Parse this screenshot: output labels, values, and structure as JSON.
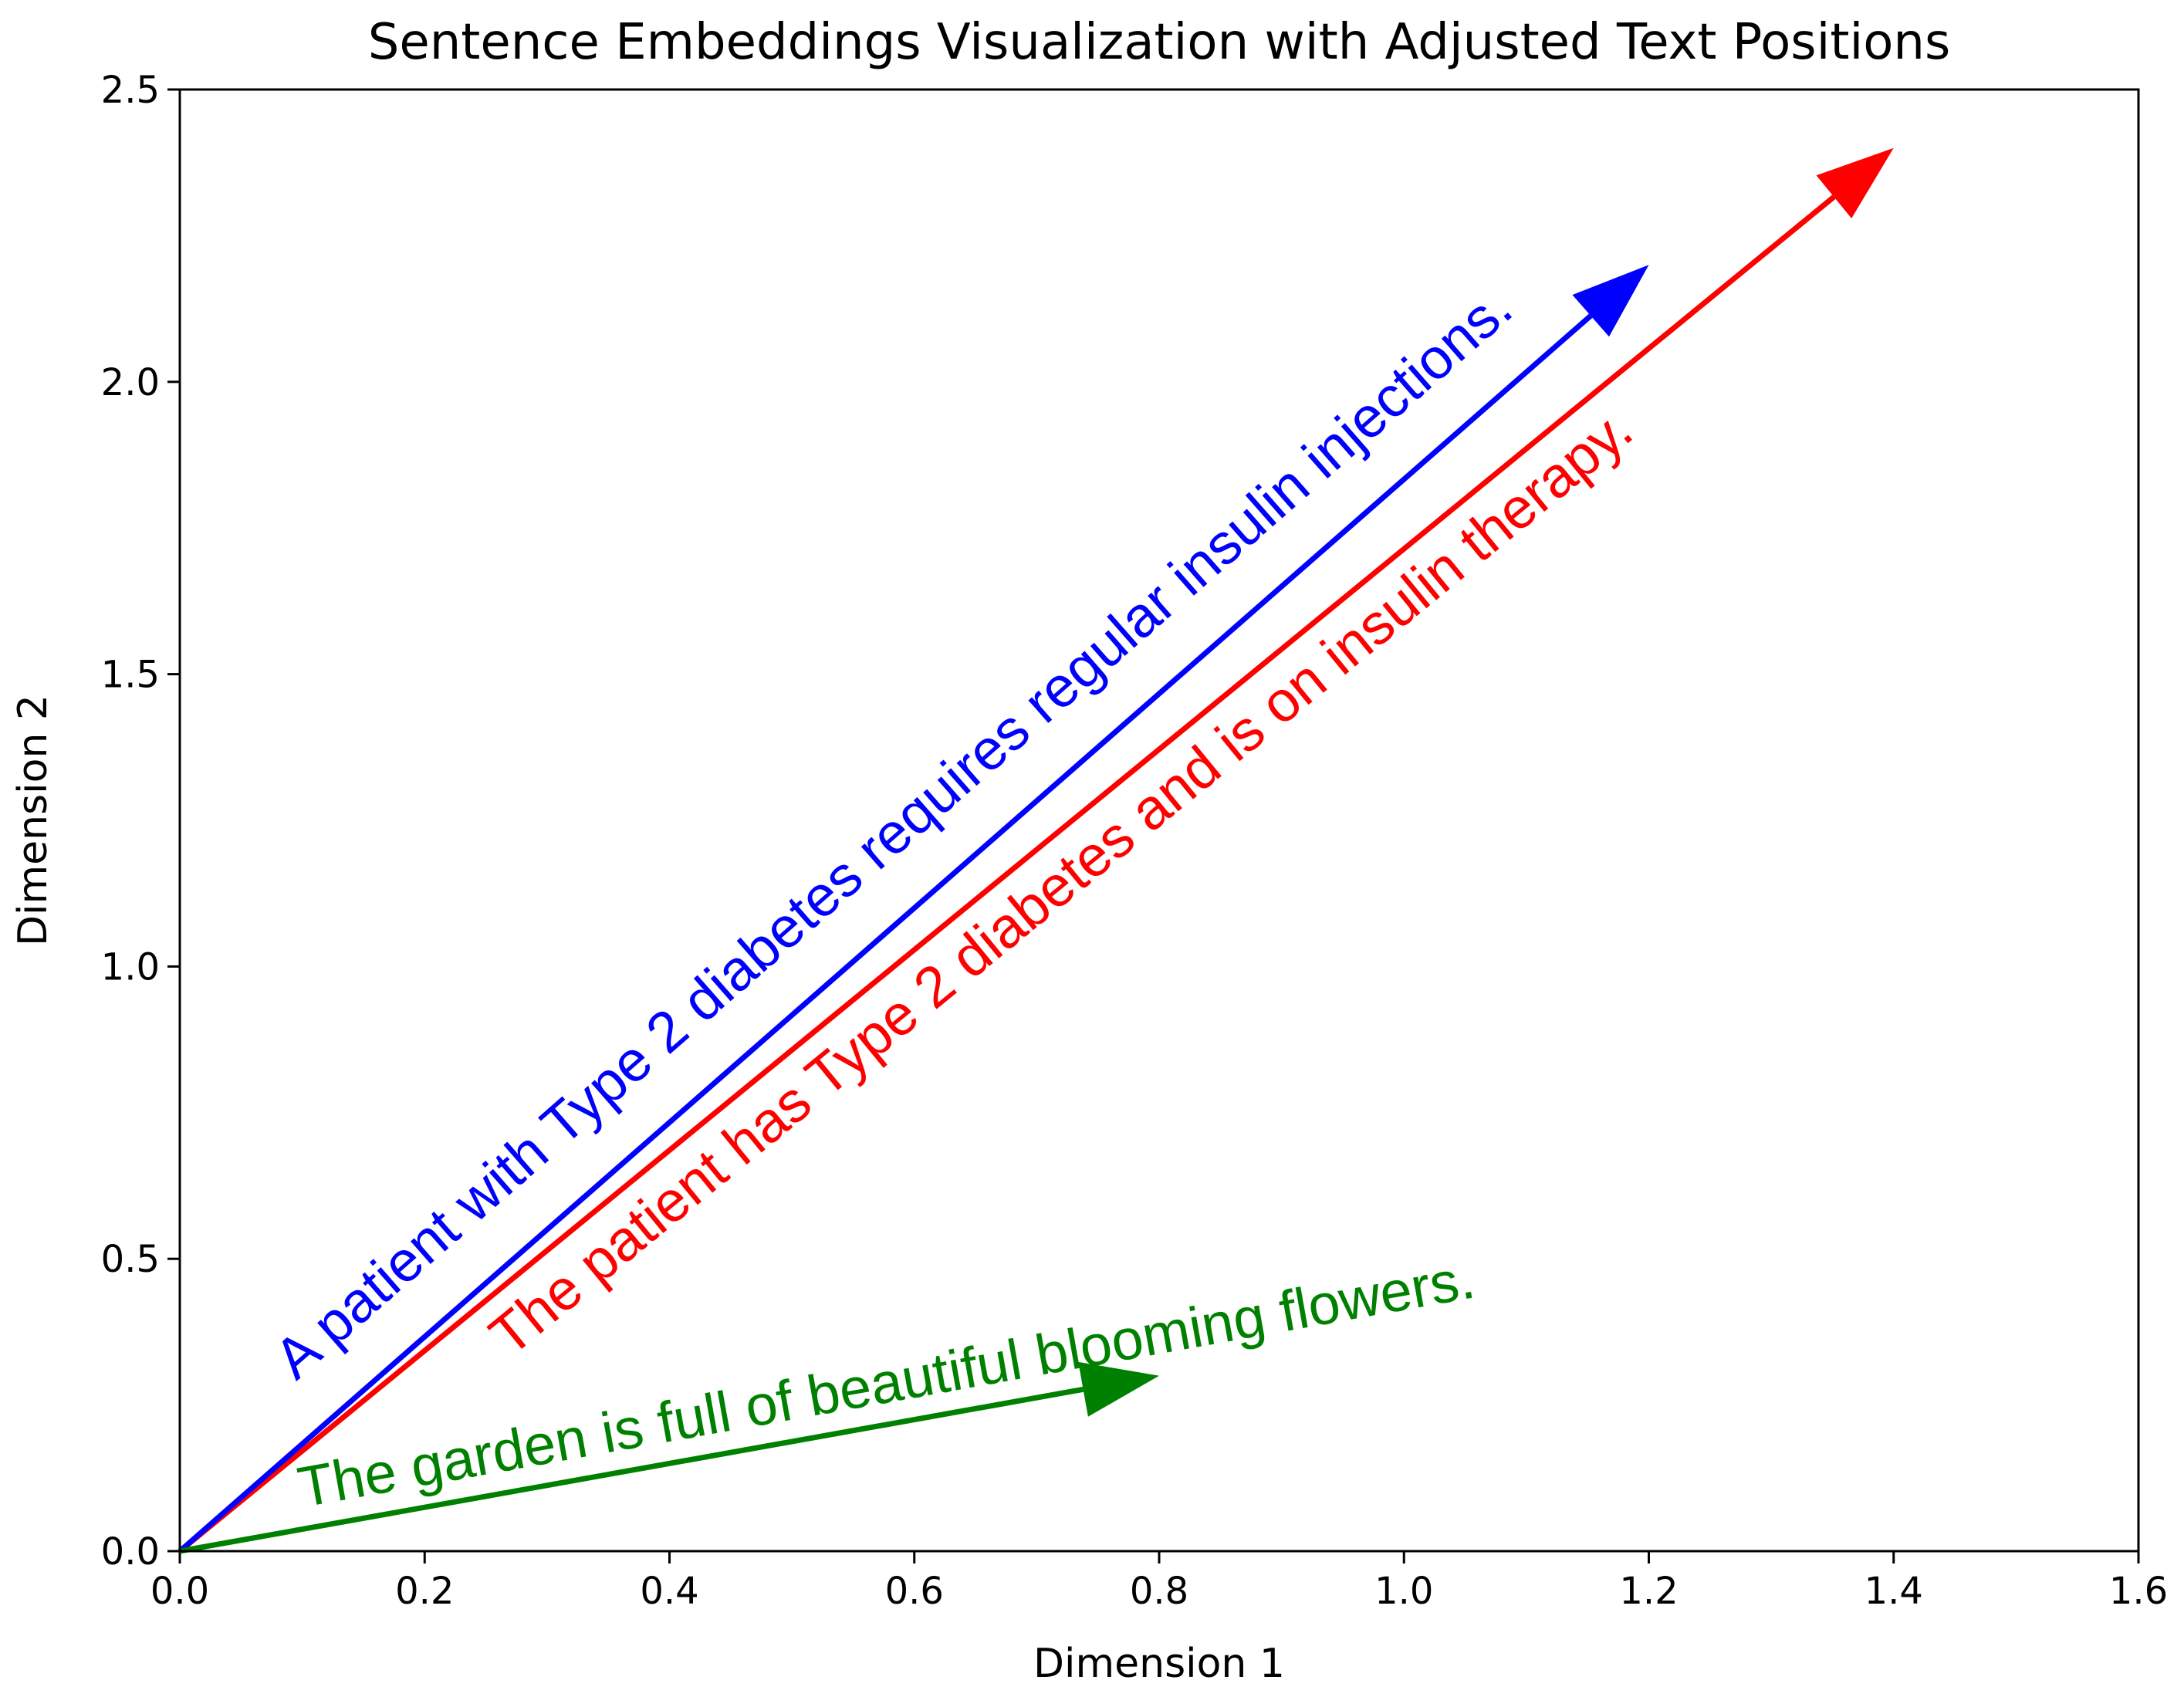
{
  "chart_data": {
    "type": "quiver",
    "title": "Sentence Embeddings Visualization with Adjusted Text Positions",
    "xlabel": "Dimension 1",
    "ylabel": "Dimension 2",
    "xlim": [
      0,
      1.6
    ],
    "ylim": [
      0,
      2.5
    ],
    "xticks": [
      "0.0",
      "0.2",
      "0.4",
      "0.6",
      "0.8",
      "1.0",
      "1.2",
      "1.4",
      "1.6"
    ],
    "yticks": [
      "0.0",
      "0.5",
      "1.0",
      "1.5",
      "2.0",
      "2.5"
    ],
    "grid": false,
    "vectors": [
      {
        "label": "The patient has Type 2 diabetes and is on insulin therapy.",
        "color": "#ff0000",
        "origin": [
          0,
          0
        ],
        "end": [
          1.4,
          2.4
        ],
        "text_anchor": [
          0.27,
          0.33
        ]
      },
      {
        "label": "A patient with Type 2 diabetes requires regular insulin injections.",
        "color": "#0000ff",
        "origin": [
          0,
          0
        ],
        "end": [
          1.2,
          2.2
        ],
        "text_anchor": [
          0.095,
          0.29
        ]
      },
      {
        "label": "The garden is full of beautiful blooming flowers.",
        "color": "#008000",
        "origin": [
          0,
          0
        ],
        "end": [
          0.8,
          0.3
        ],
        "text_anchor": [
          0.1,
          0.075
        ]
      }
    ]
  }
}
